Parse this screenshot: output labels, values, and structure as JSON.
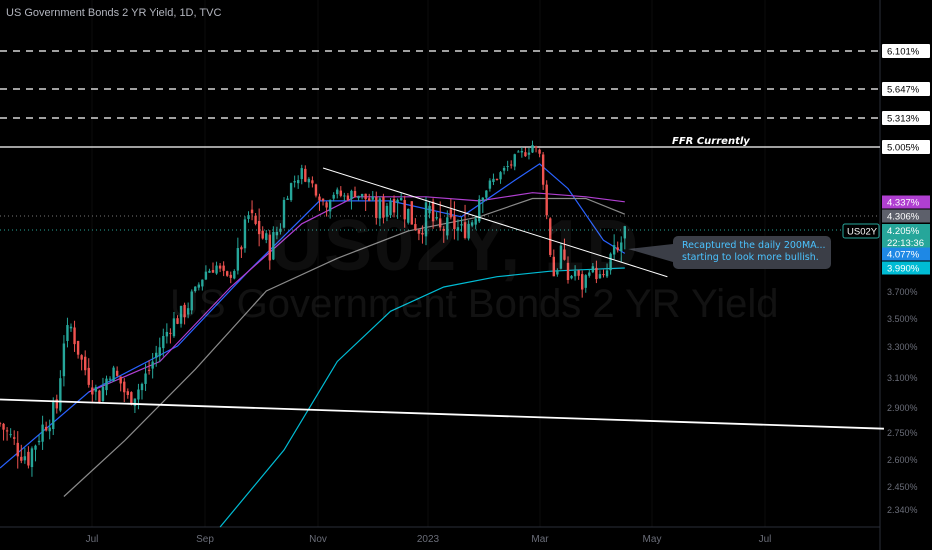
{
  "header": {
    "title": "US Government Bonds 2 YR Yield, 1D, TVC"
  },
  "watermark": {
    "symbol": "US02Y, 1D",
    "description": "US Government Bonds 2 YR Yield"
  },
  "colors": {
    "background": "#000000",
    "candle_up": "#26a69a",
    "candle_down": "#ef5350",
    "ma_blue": "#2962ff",
    "ma_purple": "#b03fd1",
    "ma_gray": "#8a8a8a",
    "ma_cyan": "#00bcd4",
    "line_white": "#ffffff"
  },
  "annotations": {
    "ffr_label": "FFR Currently",
    "callout_line1": "Recaptured the daily 200MA...",
    "callout_line2": "starting to look more bullish."
  },
  "chart_data": {
    "type": "candlestick",
    "title": "US Government Bonds 2 YR Yield, 1D, TVC",
    "y_scale": "percent",
    "ylim": [
      2.17,
      5.53
    ],
    "x_tick_labels": [
      "Jul",
      "Sep",
      "Nov",
      "2023",
      "Mar",
      "May",
      "Jul"
    ],
    "y_tick_labels": [
      "5.000%",
      "3.700%",
      "3.500%",
      "3.300%",
      "3.100%",
      "2.900%",
      "2.750%",
      "2.600%",
      "2.450%",
      "2.340%"
    ],
    "horizontal_levels": [
      {
        "label": "6.101%",
        "value": 6.101,
        "style": "dashed"
      },
      {
        "label": "5.647%",
        "value": 5.647,
        "style": "dashed"
      },
      {
        "label": "5.313%",
        "value": 5.313,
        "style": "dashed"
      },
      {
        "label": "5.005%",
        "value": 5.005,
        "style": "solid",
        "annotation": "FFR Currently"
      }
    ],
    "price_badges": [
      {
        "label": "4.337%",
        "value": 4.337,
        "color": "#b03fd1"
      },
      {
        "label": "4.306%",
        "value": 4.306,
        "color": "#5d606b"
      },
      {
        "label": "4.205%",
        "value": 4.205,
        "color": "#26a69a",
        "countdown": "22:13:36",
        "symbol": "US02Y"
      },
      {
        "label": "4.077%",
        "value": 4.077,
        "color": "#1e88e5"
      },
      {
        "label": "3.990%",
        "value": 3.99,
        "color": "#00bcd4"
      }
    ],
    "last_price": 4.205,
    "countdown": "22:13:36",
    "symbol": "US02Y",
    "ohlc_close_path": [
      [
        0,
        2.8
      ],
      [
        5,
        2.66
      ],
      [
        8,
        2.61
      ],
      [
        12,
        2.78
      ],
      [
        16,
        2.9
      ],
      [
        18,
        3.35
      ],
      [
        20,
        3.43
      ],
      [
        23,
        3.2
      ],
      [
        26,
        3.05
      ],
      [
        28,
        2.97
      ],
      [
        31,
        3.15
      ],
      [
        34,
        3.06
      ],
      [
        36,
        2.95
      ],
      [
        40,
        3.05
      ],
      [
        44,
        3.25
      ],
      [
        48,
        3.45
      ],
      [
        52,
        3.55
      ],
      [
        55,
        3.7
      ],
      [
        58,
        3.95
      ],
      [
        61,
        4.0
      ],
      [
        64,
        3.85
      ],
      [
        67,
        4.05
      ],
      [
        70,
        4.3
      ],
      [
        73,
        4.2
      ],
      [
        76,
        4.1
      ],
      [
        79,
        4.25
      ],
      [
        82,
        4.55
      ],
      [
        85,
        4.7
      ],
      [
        88,
        4.55
      ],
      [
        91,
        4.35
      ],
      [
        94,
        4.45
      ],
      [
        97,
        4.4
      ],
      [
        100,
        4.45
      ],
      [
        103,
        4.38
      ],
      [
        106,
        4.32
      ],
      [
        109,
        4.35
      ],
      [
        112,
        4.4
      ],
      [
        115,
        4.3
      ],
      [
        118,
        4.22
      ],
      [
        121,
        4.3
      ],
      [
        124,
        4.2
      ],
      [
        127,
        4.25
      ],
      [
        130,
        4.2
      ],
      [
        133,
        4.28
      ],
      [
        136,
        4.45
      ],
      [
        139,
        4.6
      ],
      [
        142,
        4.72
      ],
      [
        145,
        4.85
      ],
      [
        148,
        4.95
      ],
      [
        150,
        5.03
      ],
      [
        152,
        4.9
      ],
      [
        154,
        4.3
      ],
      [
        156,
        3.9
      ],
      [
        158,
        4.1
      ],
      [
        160,
        3.85
      ],
      [
        162,
        3.95
      ],
      [
        164,
        3.75
      ],
      [
        166,
        4.0
      ],
      [
        168,
        3.9
      ],
      [
        170,
        3.85
      ],
      [
        172,
        4.05
      ],
      [
        174,
        4.08
      ],
      [
        176,
        4.2
      ]
    ],
    "moving_averages": [
      {
        "color": "#2962ff",
        "points": [
          [
            0,
            2.55
          ],
          [
            25,
            3.0
          ],
          [
            50,
            3.3
          ],
          [
            70,
            3.95
          ],
          [
            90,
            4.35
          ],
          [
            110,
            4.35
          ],
          [
            130,
            4.3
          ],
          [
            145,
            4.6
          ],
          [
            152,
            4.8
          ],
          [
            160,
            4.5
          ],
          [
            170,
            4.15
          ],
          [
            176,
            4.08
          ]
        ]
      },
      {
        "color": "#b03fd1",
        "points": [
          [
            25,
            3.0
          ],
          [
            45,
            3.2
          ],
          [
            65,
            3.75
          ],
          [
            85,
            4.25
          ],
          [
            100,
            4.4
          ],
          [
            120,
            4.4
          ],
          [
            135,
            4.35
          ],
          [
            150,
            4.45
          ],
          [
            165,
            4.4
          ],
          [
            176,
            4.34
          ]
        ]
      },
      {
        "color": "#8a8a8a",
        "points": [
          [
            18,
            2.4
          ],
          [
            35,
            2.7
          ],
          [
            55,
            3.15
          ],
          [
            75,
            3.7
          ],
          [
            95,
            4.05
          ],
          [
            115,
            4.2
          ],
          [
            135,
            4.3
          ],
          [
            150,
            4.38
          ],
          [
            165,
            4.38
          ],
          [
            176,
            4.31
          ]
        ]
      },
      {
        "color": "#00bcd4",
        "points": [
          [
            62,
            2.17
          ],
          [
            80,
            2.65
          ],
          [
            95,
            3.2
          ],
          [
            110,
            3.55
          ],
          [
            125,
            3.75
          ],
          [
            140,
            3.88
          ],
          [
            155,
            3.95
          ],
          [
            170,
            3.98
          ],
          [
            176,
            3.99
          ]
        ]
      }
    ],
    "trendlines": [
      {
        "color": "#ffffff",
        "from": [
          0,
          2.95
        ],
        "to": [
          249,
          2.77
        ]
      },
      {
        "color": "#ffffff",
        "from": [
          91,
          4.75
        ],
        "to": [
          188,
          3.88
        ]
      }
    ]
  }
}
